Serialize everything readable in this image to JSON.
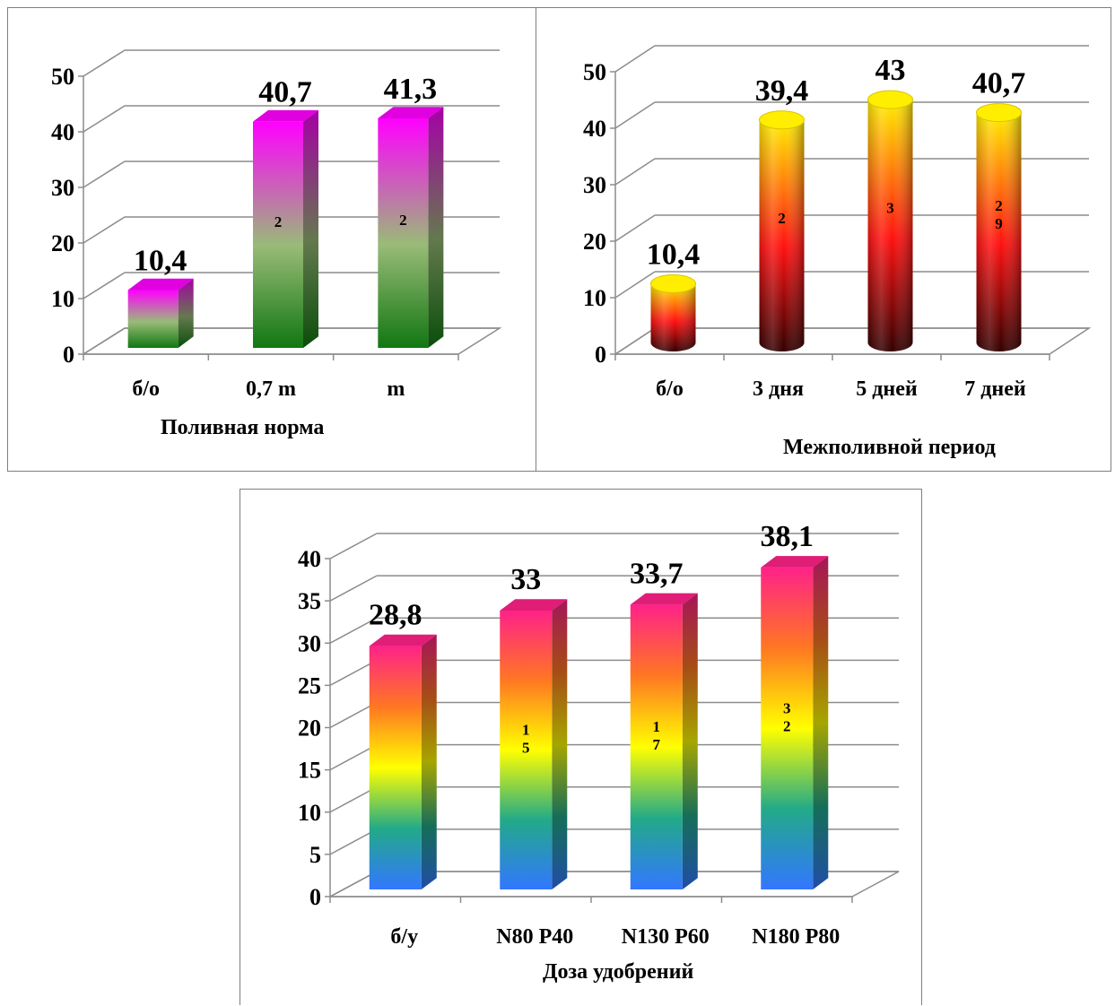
{
  "chart_data": [
    {
      "type": "bar",
      "style": "3d-box",
      "xlabel": "Поливная норма",
      "ylabel": "",
      "ylim": [
        0,
        50
      ],
      "yticks": [
        0,
        10,
        20,
        30,
        40,
        50
      ],
      "grid": true,
      "categories": [
        "б/о",
        "0,7 m",
        "m"
      ],
      "values": [
        10.4,
        40.7,
        41.3
      ],
      "value_labels": [
        "10,4",
        "40,7",
        "41,3"
      ],
      "inner_labels": [
        [],
        [
          "2"
        ],
        [
          "2"
        ]
      ],
      "colors": {
        "top": "#ff00ff",
        "middle": "#99bb77",
        "bottom": "#117711"
      }
    },
    {
      "type": "bar",
      "style": "3d-cylinder",
      "xlabel": "Межполивной период",
      "ylabel": "",
      "ylim": [
        0,
        50
      ],
      "yticks": [
        0,
        10,
        20,
        30,
        40,
        50
      ],
      "grid": true,
      "categories": [
        "б/о",
        "3 дня",
        "5 дней",
        "7 дней"
      ],
      "values": [
        10.4,
        39.4,
        43,
        40.7
      ],
      "value_labels": [
        "10,4",
        "39,4",
        "43",
        "40,7"
      ],
      "inner_labels": [
        [],
        [
          "2"
        ],
        [
          "3"
        ],
        [
          "2",
          "9"
        ]
      ],
      "colors": {
        "top": "#ffee00",
        "middle": "#ff1111",
        "bottom": "#330000"
      }
    },
    {
      "type": "bar",
      "style": "3d-box",
      "xlabel": "Доза удобрений",
      "ylabel": "",
      "ylim": [
        0,
        40
      ],
      "yticks": [
        0,
        5,
        10,
        15,
        20,
        25,
        30,
        35,
        40
      ],
      "grid": true,
      "categories": [
        "б/у",
        "N80 P40",
        "N130 P60",
        "N180 P80"
      ],
      "values": [
        28.8,
        33,
        33.7,
        38.1
      ],
      "value_labels": [
        "28,8",
        "33",
        "33,7",
        "38,1"
      ],
      "inner_labels": [
        [],
        [
          "1",
          "5"
        ],
        [
          "1",
          "7"
        ],
        [
          "3",
          "2"
        ]
      ],
      "colors": {
        "top": "#ff2288",
        "upper": "#ff7722",
        "middle": "#ffff00",
        "lower": "#22aa88",
        "bottom": "#3377ff"
      }
    }
  ]
}
